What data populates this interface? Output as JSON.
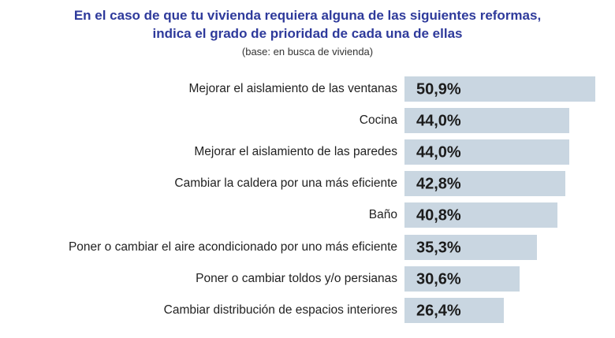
{
  "chart_data": {
    "type": "bar",
    "orientation": "horizontal",
    "title": "En el caso de que tu vivienda requiera alguna de las siguientes reformas, indica el grado de prioridad de cada una de ellas",
    "title_lines": [
      "En el caso de que tu vivienda requiera alguna de las siguientes reformas,",
      "indica el grado de prioridad de cada una de ellas"
    ],
    "subtitle": "(base: en busca de vivienda)",
    "categories": [
      "Mejorar el aislamiento de las ventanas",
      "Cocina",
      "Mejorar el aislamiento de las paredes",
      "Cambiar la caldera por una más eficiente",
      "Baño",
      "Poner o cambiar el aire acondicionado por uno más eficiente",
      "Poner o cambiar toldos y/o persianas",
      "Cambiar distribución de espacios interiores"
    ],
    "values": [
      50.9,
      44.0,
      44.0,
      42.8,
      40.8,
      35.3,
      30.6,
      26.4
    ],
    "data_labels": [
      "50,9%",
      "44,0%",
      "44,0%",
      "42,8%",
      "40,8%",
      "35,3%",
      "30,6%",
      "26,4%"
    ],
    "unit": "%",
    "grid": false,
    "legend": "none",
    "colors": {
      "bar": "#c9d6e1",
      "title": "#2e3a9b"
    }
  }
}
